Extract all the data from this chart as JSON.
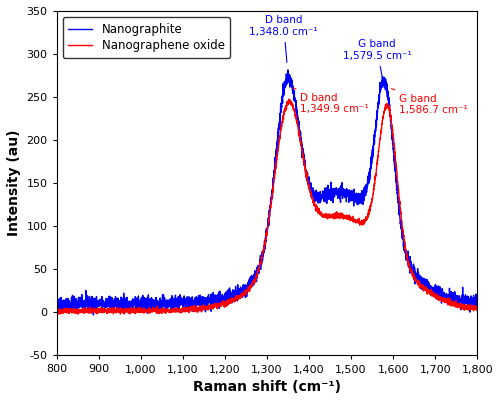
{
  "blue_label": "Nanographite",
  "red_label": "Nanographene oxide",
  "blue_color": "#0000FF",
  "red_color": "#FF0000",
  "xlim": [
    800,
    1800
  ],
  "ylim": [
    -50,
    350
  ],
  "xlabel": "Raman shift (cm⁻¹)",
  "ylabel": "Intensity (au)",
  "xticks": [
    800,
    900,
    1000,
    1100,
    1200,
    1300,
    1400,
    1500,
    1600,
    1700,
    1800
  ],
  "xtick_labels": [
    "800",
    "900",
    "1,000",
    "1,100",
    "1,200",
    "1,300",
    "1,400",
    "1,500",
    "1,600",
    "1,700",
    "1,800"
  ],
  "yticks": [
    -50,
    0,
    50,
    100,
    150,
    200,
    250,
    300,
    350
  ],
  "line_width": 1.0,
  "seed": 42,
  "annot_blue_d_text": "D band\n1,348.0 cm⁻¹",
  "annot_blue_g_text": "G band\n1,579.5 cm⁻¹",
  "annot_red_d_text": "D band\n1,349.9 cm⁻¹",
  "annot_red_g_text": "G band\n1,586.7 cm⁻¹",
  "annot_fontsize": 7.5
}
